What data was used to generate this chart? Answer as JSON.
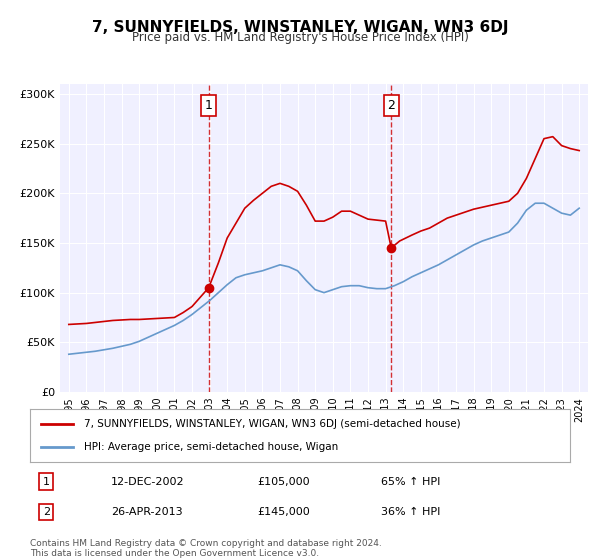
{
  "title": "7, SUNNYFIELDS, WINSTANLEY, WIGAN, WN3 6DJ",
  "subtitle": "Price paid vs. HM Land Registry's House Price Index (HPI)",
  "legend_label1": "7, SUNNYFIELDS, WINSTANLEY, WIGAN, WN3 6DJ (semi-detached house)",
  "legend_label2": "HPI: Average price, semi-detached house, Wigan",
  "transaction1": {
    "label": "1",
    "date": "12-DEC-2002",
    "price": "£105,000",
    "hpi": "65% ↑ HPI",
    "x_year": 2002.95,
    "price_val": 105000
  },
  "transaction2": {
    "label": "2",
    "date": "26-APR-2013",
    "price": "£145,000",
    "hpi": "36% ↑ HPI",
    "x_year": 2013.32,
    "price_val": 145000
  },
  "footnote": "Contains HM Land Registry data © Crown copyright and database right 2024.\nThis data is licensed under the Open Government Licence v3.0.",
  "color_price": "#cc0000",
  "color_hpi": "#6699cc",
  "color_vline": "#cc0000",
  "bg_color": "#f0f0ff",
  "ylim": [
    0,
    310000
  ],
  "yticks": [
    0,
    50000,
    100000,
    150000,
    200000,
    250000,
    300000
  ],
  "ytick_labels": [
    "£0",
    "£50K",
    "£100K",
    "£150K",
    "£200K",
    "£250K",
    "£300K"
  ],
  "xlim_start": 1994.5,
  "xlim_end": 2024.5,
  "xticks": [
    1995,
    1996,
    1997,
    1998,
    1999,
    2000,
    2001,
    2002,
    2003,
    2004,
    2005,
    2006,
    2007,
    2008,
    2009,
    2010,
    2011,
    2012,
    2013,
    2014,
    2015,
    2016,
    2017,
    2018,
    2019,
    2020,
    2021,
    2022,
    2023,
    2024
  ],
  "price_data": {
    "years": [
      1995.0,
      1995.5,
      1996.0,
      1996.5,
      1997.0,
      1997.5,
      1998.0,
      1998.5,
      1999.0,
      1999.5,
      2000.0,
      2000.5,
      2001.0,
      2001.5,
      2002.0,
      2002.5,
      2002.95,
      2003.5,
      2004.0,
      2004.5,
      2005.0,
      2005.5,
      2006.0,
      2006.5,
      2007.0,
      2007.5,
      2008.0,
      2008.5,
      2009.0,
      2009.5,
      2010.0,
      2010.5,
      2011.0,
      2011.5,
      2012.0,
      2012.5,
      2013.0,
      2013.32,
      2013.8,
      2014.5,
      2015.0,
      2015.5,
      2016.0,
      2016.5,
      2017.0,
      2017.5,
      2018.0,
      2018.5,
      2019.0,
      2019.5,
      2020.0,
      2020.5,
      2021.0,
      2021.5,
      2022.0,
      2022.5,
      2023.0,
      2023.5,
      2024.0
    ],
    "values": [
      68000,
      68500,
      69000,
      70000,
      71000,
      72000,
      72500,
      73000,
      73000,
      73500,
      74000,
      74500,
      75000,
      80000,
      86000,
      96000,
      105000,
      130000,
      155000,
      170000,
      185000,
      193000,
      200000,
      207000,
      210000,
      207000,
      202000,
      188000,
      172000,
      172000,
      176000,
      182000,
      182000,
      178000,
      174000,
      173000,
      172000,
      145000,
      152000,
      158000,
      162000,
      165000,
      170000,
      175000,
      178000,
      181000,
      184000,
      186000,
      188000,
      190000,
      192000,
      200000,
      215000,
      235000,
      255000,
      257000,
      248000,
      245000,
      243000
    ]
  },
  "hpi_data": {
    "years": [
      1995.0,
      1995.5,
      1996.0,
      1996.5,
      1997.0,
      1997.5,
      1998.0,
      1998.5,
      1999.0,
      1999.5,
      2000.0,
      2000.5,
      2001.0,
      2001.5,
      2002.0,
      2002.5,
      2003.0,
      2003.5,
      2004.0,
      2004.5,
      2005.0,
      2005.5,
      2006.0,
      2006.5,
      2007.0,
      2007.5,
      2008.0,
      2008.5,
      2009.0,
      2009.5,
      2010.0,
      2010.5,
      2011.0,
      2011.5,
      2012.0,
      2012.5,
      2013.0,
      2013.5,
      2014.0,
      2014.5,
      2015.0,
      2015.5,
      2016.0,
      2016.5,
      2017.0,
      2017.5,
      2018.0,
      2018.5,
      2019.0,
      2019.5,
      2020.0,
      2020.5,
      2021.0,
      2021.5,
      2022.0,
      2022.5,
      2023.0,
      2023.5,
      2024.0
    ],
    "values": [
      38000,
      39000,
      40000,
      41000,
      42500,
      44000,
      46000,
      48000,
      51000,
      55000,
      59000,
      63000,
      67000,
      72000,
      78000,
      85000,
      92000,
      100000,
      108000,
      115000,
      118000,
      120000,
      122000,
      125000,
      128000,
      126000,
      122000,
      112000,
      103000,
      100000,
      103000,
      106000,
      107000,
      107000,
      105000,
      104000,
      104000,
      107000,
      111000,
      116000,
      120000,
      124000,
      128000,
      133000,
      138000,
      143000,
      148000,
      152000,
      155000,
      158000,
      161000,
      170000,
      183000,
      190000,
      190000,
      185000,
      180000,
      178000,
      185000
    ]
  }
}
